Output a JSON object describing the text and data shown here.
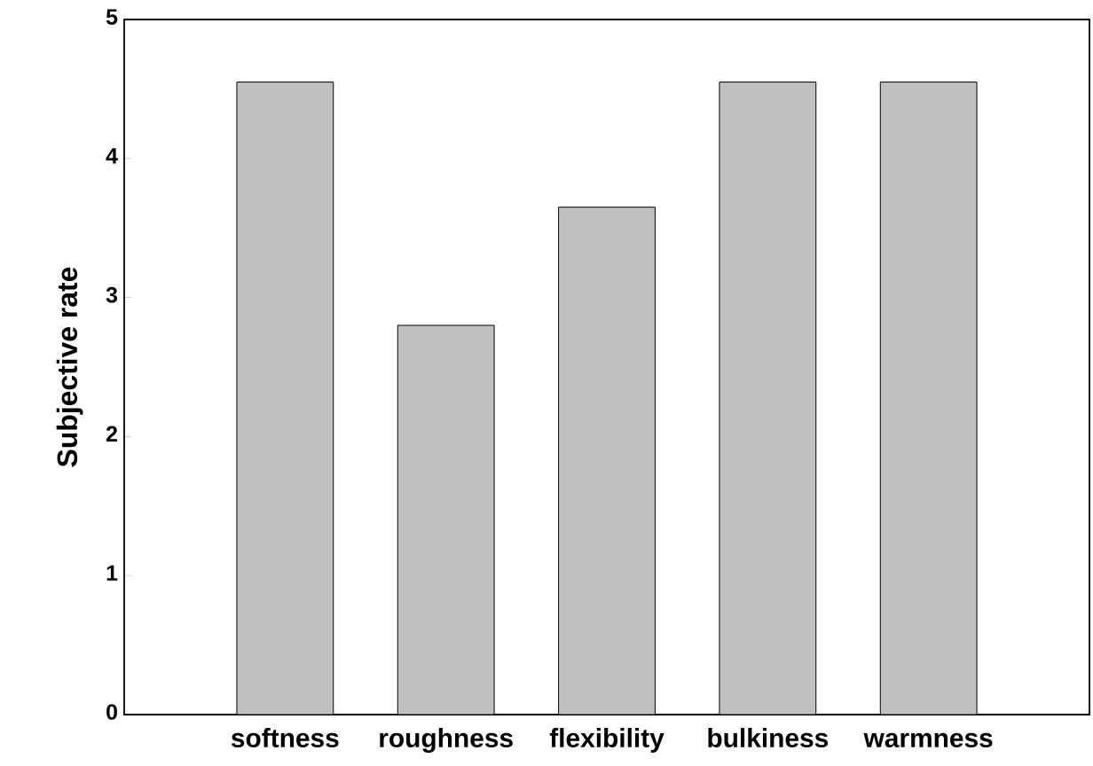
{
  "chart_data": {
    "type": "bar",
    "ylabel": "Subjective rate",
    "categories": [
      "softness",
      "roughness",
      "flexibility",
      "bulkiness",
      "warmness"
    ],
    "values": [
      4.55,
      2.8,
      3.65,
      4.55,
      4.55
    ],
    "color": "#c0c0c0",
    "ylim": [
      0,
      5
    ],
    "yticks": [
      0,
      1,
      2,
      3,
      4,
      5
    ],
    "grid": false
  }
}
